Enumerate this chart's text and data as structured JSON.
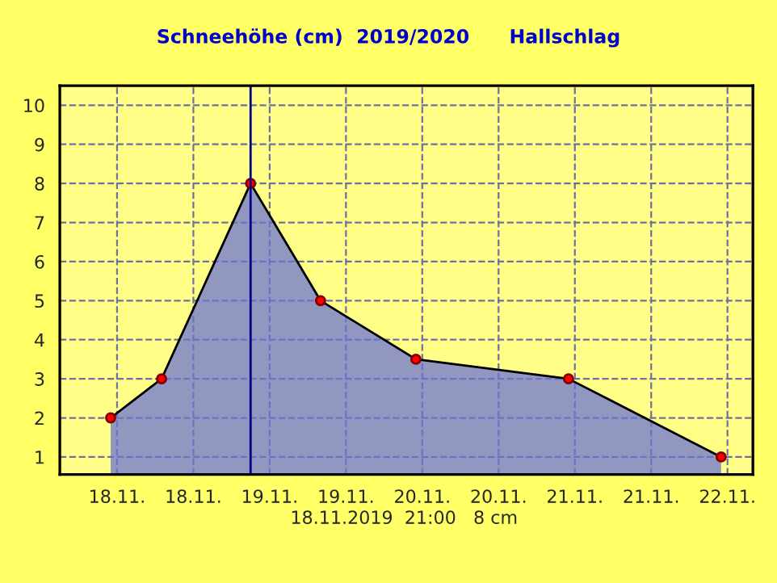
{
  "chart_data": {
    "type": "area",
    "title": "Schneehöhe (cm)  2019/2020      Hallschlag",
    "x": [
      "2019-11-17T23:00",
      "2019-11-18T07:00",
      "2019-11-18T21:00",
      "2019-11-19T08:00",
      "2019-11-19T23:00",
      "2019-11-20T23:00",
      "2019-11-21T23:00"
    ],
    "series": [
      {
        "color": "#6c74d0",
        "values": [
          2,
          3,
          8,
          5,
          3.5,
          3,
          1
        ]
      }
    ],
    "xlim": [
      "2019-11-17T15:00",
      "2019-11-22T04:00"
    ],
    "ylim": [
      0.55,
      10.5
    ],
    "xticks": [
      {
        "value": "2019-11-18T00:00",
        "label": "18.11."
      },
      {
        "value": "2019-11-18T12:00",
        "label": "18.11."
      },
      {
        "value": "2019-11-19T00:00",
        "label": "19.11."
      },
      {
        "value": "2019-11-19T12:00",
        "label": "19.11."
      },
      {
        "value": "2019-11-20T00:00",
        "label": "20.11."
      },
      {
        "value": "2019-11-20T12:00",
        "label": "20.11."
      },
      {
        "value": "2019-11-21T00:00",
        "label": "21.11."
      },
      {
        "value": "2019-11-21T12:00",
        "label": "21.11."
      },
      {
        "value": "2019-11-22T00:00",
        "label": "22.11."
      }
    ],
    "yticks": [
      1,
      2,
      3,
      4,
      5,
      6,
      7,
      8,
      9,
      10
    ],
    "ref_lines": [
      {
        "axis": "x",
        "value": "2019-11-18T21:00",
        "color": "#00008b"
      }
    ],
    "annotations": [
      "18.11.2019  21:00   8 cm"
    ],
    "grid": true,
    "marker": "circle",
    "line_style": "solid",
    "legend": false
  }
}
